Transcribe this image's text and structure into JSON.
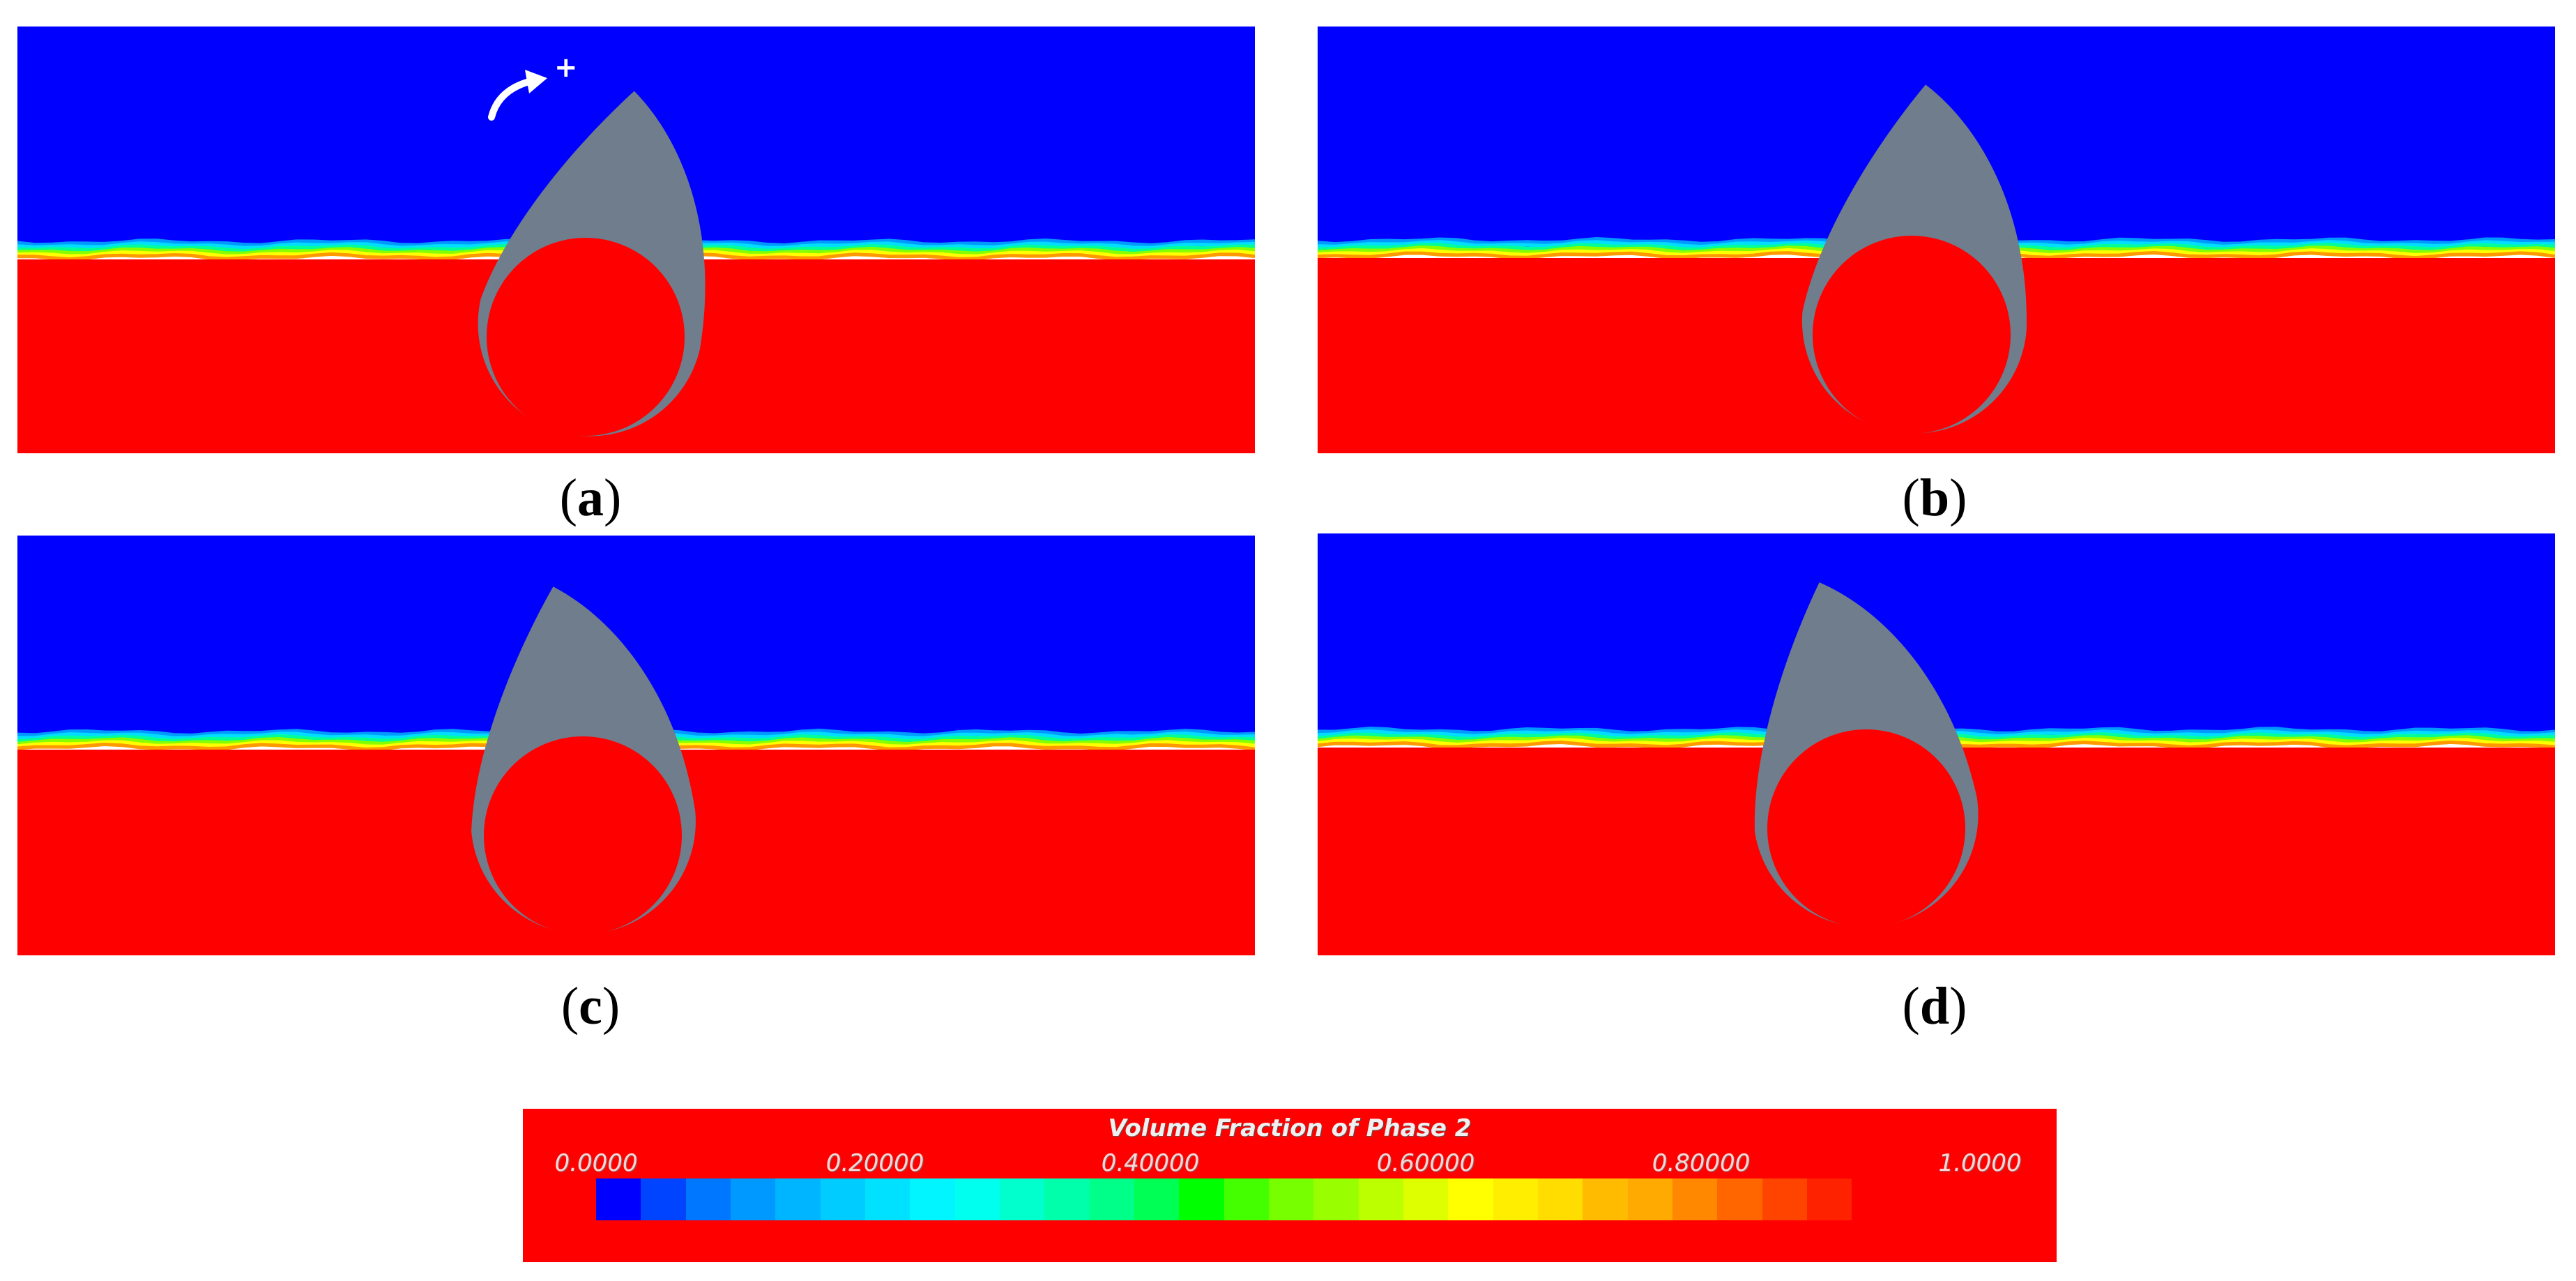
{
  "panels": [
    {
      "id": "a",
      "caption": "a",
      "tilt_deg": 20,
      "show_rotation_marker": true,
      "rotation_marker_symbol": "+"
    },
    {
      "id": "b",
      "caption": "b",
      "tilt_deg": 12,
      "show_rotation_marker": false
    },
    {
      "id": "c",
      "caption": "c",
      "tilt_deg": 2,
      "show_rotation_marker": false
    },
    {
      "id": "d",
      "caption": "d",
      "tilt_deg": -2,
      "show_rotation_marker": false
    }
  ],
  "colors": {
    "phase_low": "#0000ff",
    "phase_high": "#ff0000",
    "body": "#6f7d8c"
  },
  "legend": {
    "title": "Volume Fraction of Phase 2",
    "ticks": [
      "0.0000",
      "0.20000",
      "0.40000",
      "0.60000",
      "0.80000",
      "1.0000"
    ],
    "colors": [
      "#0000ff",
      "#0044ff",
      "#0077ff",
      "#0099ff",
      "#00b5ff",
      "#00ccff",
      "#00e0ff",
      "#00f5ff",
      "#00ffee",
      "#00ffcc",
      "#00ffaa",
      "#00ff88",
      "#00ff55",
      "#00ff00",
      "#44ff00",
      "#77ff00",
      "#99ff00",
      "#bbff00",
      "#ddff00",
      "#ffff00",
      "#ffee00",
      "#ffdd00",
      "#ffbb00",
      "#ffaa00",
      "#ff8800",
      "#ff6600",
      "#ff4400",
      "#ff2200",
      "#ff0000",
      "#ff0000",
      "#ff0000"
    ]
  }
}
